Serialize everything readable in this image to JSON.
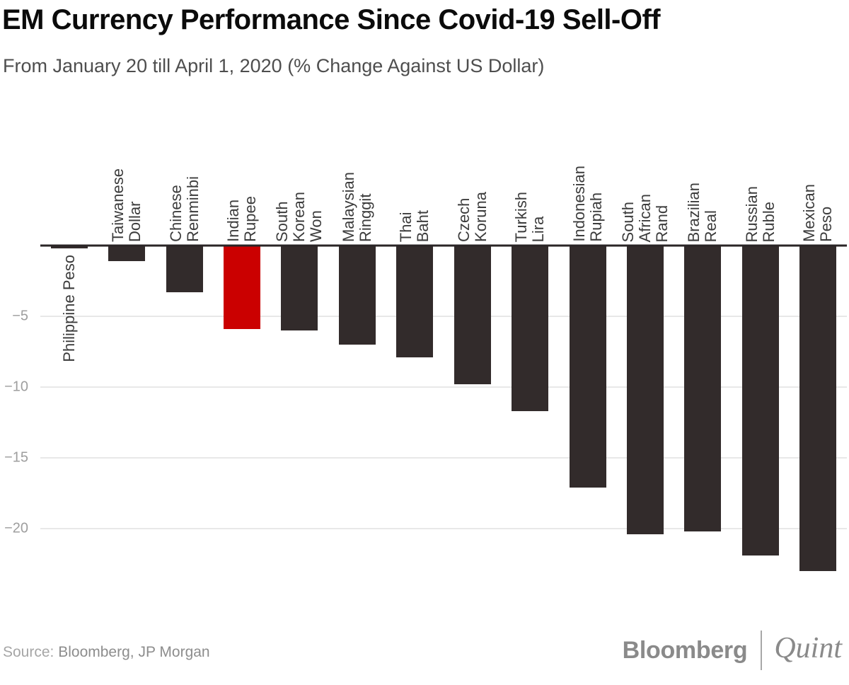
{
  "header": {
    "title": "EM Currency Performance Since Covid-19 Sell-Off",
    "subtitle": "From January 20 till April 1, 2020 (% Change Against US Dollar)"
  },
  "chart_data": {
    "type": "bar",
    "orientation": "vertical",
    "title": "EM Currency Performance Since Covid-19 Sell-Off",
    "subtitle": "From January 20 till April 1, 2020 (% Change Against US Dollar)",
    "categories": [
      "Philippine Peso",
      "Taiwanese Dollar",
      "Chinese Renminbi",
      "Indian Rupee",
      "South Korean Won",
      "Malaysian Ringgit",
      "Thai Baht",
      "Czech Koruna",
      "Turkish Lira",
      "Indonesian Rupiah",
      "South African Rand",
      "Brazilian Real",
      "Russian Ruble",
      "Mexican Peso"
    ],
    "values": [
      -0.2,
      -1.1,
      -3.3,
      -5.9,
      -6.0,
      -7.0,
      -7.9,
      -9.8,
      -11.7,
      -17.1,
      -20.4,
      -20.2,
      -21.9,
      -23.0
    ],
    "xlabel": "",
    "ylabel": "",
    "yticks": [
      -5,
      -10,
      -15,
      -20
    ],
    "ylim": [
      -26.6,
      0
    ],
    "grid": true,
    "legend": "none",
    "bar_color": "#322b2b",
    "highlight": {
      "category": "Indian Rupee",
      "color": "#cb0000"
    },
    "axis_color": "#2a2526",
    "gridline_color": "#e8e8e8",
    "tick_label_color": "#9e9e9e",
    "labels_below_axis": [
      "Philippine Peso"
    ],
    "wrapped_labels": {
      "Taiwanese Dollar": "Taiwanese\nDollar"
    }
  },
  "footer": {
    "source_label": "Source:",
    "source_value": "Bloomberg, JP Morgan",
    "logo_primary": "Bloomberg",
    "logo_secondary": "Quint"
  }
}
